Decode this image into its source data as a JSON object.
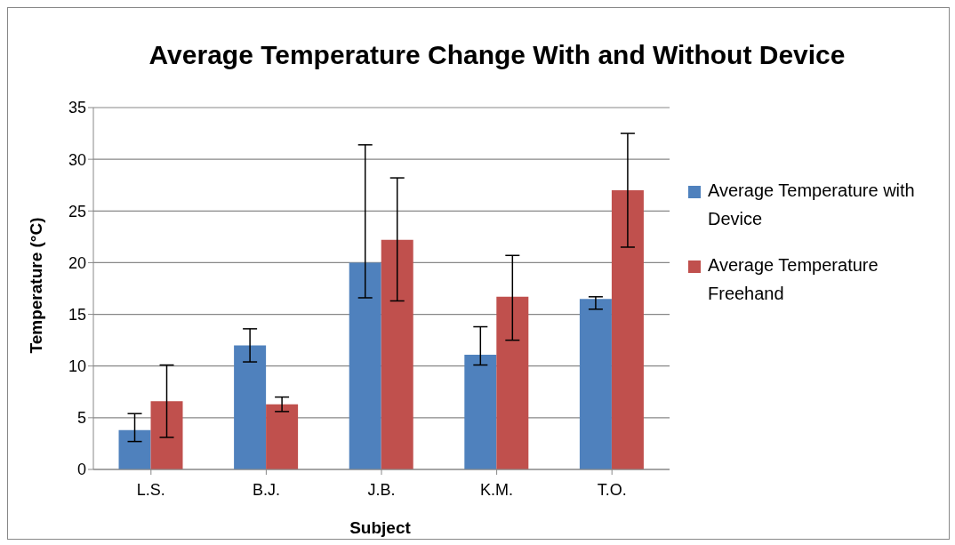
{
  "chart_data": {
    "type": "bar",
    "title": "Average Temperature Change With and Without Device",
    "xlabel": "Subject",
    "ylabel": "Temperature (°C)",
    "categories": [
      "L.S.",
      "B.J.",
      "J.B.",
      "K.M.",
      "T.O."
    ],
    "series": [
      {
        "name": "Average Temperature with Device",
        "color": "#4f81bd",
        "values": [
          3.8,
          12.0,
          20.0,
          11.1,
          16.5
        ],
        "errors": [
          [
            2.7,
            5.4
          ],
          [
            10.4,
            13.6
          ],
          [
            16.6,
            31.4
          ],
          [
            10.1,
            13.8
          ],
          [
            15.5,
            16.7
          ]
        ]
      },
      {
        "name": "Average Temperature Freehand",
        "color": "#c0504d",
        "values": [
          6.6,
          6.3,
          22.2,
          16.7,
          27.0
        ],
        "errors": [
          [
            3.1,
            10.1
          ],
          [
            5.6,
            7.0
          ],
          [
            16.3,
            28.2
          ],
          [
            12.5,
            20.7
          ],
          [
            21.5,
            32.5
          ]
        ]
      }
    ],
    "ylim": [
      0,
      35
    ],
    "yticks": [
      0,
      5,
      10,
      15,
      20,
      25,
      30,
      35
    ],
    "grid": "y",
    "legend": "right"
  }
}
